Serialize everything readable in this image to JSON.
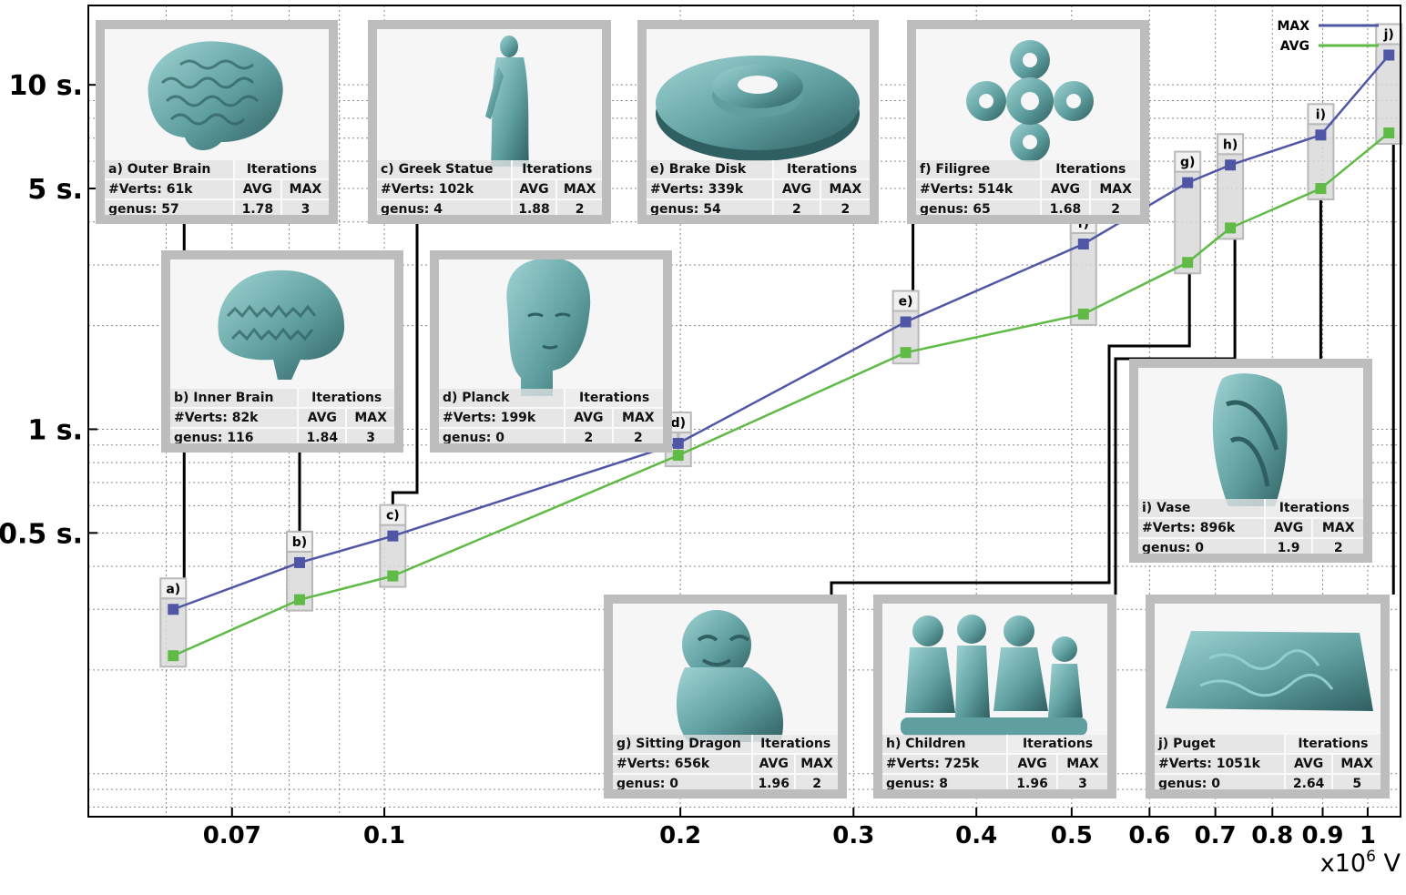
{
  "chart_data": {
    "type": "line",
    "x_scale": "log",
    "y_scale": "log",
    "x_unit": "x10",
    "x_unit_exp": "6",
    "x_unit_tail": " V",
    "xlim": [
      0.05,
      1.08
    ],
    "ylim": [
      0.075,
      17
    ],
    "grid": true,
    "legend_position": "top-right",
    "x_ticks": [
      {
        "v": 0.07,
        "label": "0.07"
      },
      {
        "v": 0.1,
        "label": "0.1"
      },
      {
        "v": 0.2,
        "label": "0.2"
      },
      {
        "v": 0.3,
        "label": "0.3"
      },
      {
        "v": 0.4,
        "label": "0.4"
      },
      {
        "v": 0.5,
        "label": "0.5"
      },
      {
        "v": 0.6,
        "label": "0.6"
      },
      {
        "v": 0.7,
        "label": "0.7"
      },
      {
        "v": 0.8,
        "label": "0.8"
      },
      {
        "v": 0.9,
        "label": "0.9"
      },
      {
        "v": 1.0,
        "label": "1"
      }
    ],
    "y_ticks": [
      {
        "v": 0.5,
        "label": "0.5 s."
      },
      {
        "v": 1,
        "label": "1 s."
      },
      {
        "v": 5,
        "label": "5 s."
      },
      {
        "v": 10,
        "label": "10 s."
      }
    ],
    "point_labels": [
      "a)",
      "b)",
      "c)",
      "d)",
      "e)",
      "f)",
      "g)",
      "h)",
      "i)",
      "j)"
    ],
    "x": [
      0.061,
      0.082,
      0.102,
      0.199,
      0.339,
      0.514,
      0.656,
      0.725,
      0.896,
      1.051
    ],
    "series": [
      {
        "name": "MAX",
        "color": "#4f56a6",
        "values": [
          0.3,
          0.41,
          0.49,
          0.91,
          2.05,
          3.45,
          5.2,
          5.85,
          7.15,
          12.2
        ]
      },
      {
        "name": "AVG",
        "color": "#5fba46",
        "values": [
          0.22,
          0.32,
          0.375,
          0.84,
          1.67,
          2.16,
          3.05,
          3.84,
          5.0,
          7.25
        ]
      }
    ]
  },
  "models": [
    {
      "name": "a) Outer Brain",
      "verts": "#Verts: 61k",
      "genus": "genus: 57",
      "iter": "Iterations",
      "avg_h": "AVG",
      "max_h": "MAX",
      "avg": "1.78",
      "max": "3",
      "icon": "brain-icon"
    },
    {
      "name": "b) Inner Brain",
      "verts": "#Verts: 82k",
      "genus": "genus: 116",
      "iter": "Iterations",
      "avg_h": "AVG",
      "max_h": "MAX",
      "avg": "1.84",
      "max": "3",
      "icon": "coral-brain-icon"
    },
    {
      "name": "c) Greek Statue",
      "verts": "#Verts: 102k",
      "genus": "genus: 4",
      "iter": "Iterations",
      "avg_h": "AVG",
      "max_h": "MAX",
      "avg": "1.88",
      "max": "2",
      "icon": "statue-icon"
    },
    {
      "name": "d) Planck",
      "verts": "#Verts: 199k",
      "genus": "genus: 0",
      "iter": "Iterations",
      "avg_h": "AVG",
      "max_h": "MAX",
      "avg": "2",
      "max": "2",
      "icon": "head-bust-icon"
    },
    {
      "name": "e) Brake Disk",
      "verts": "#Verts: 339k",
      "genus": "genus: 54",
      "iter": "Iterations",
      "avg_h": "AVG",
      "max_h": "MAX",
      "avg": "2",
      "max": "2",
      "icon": "brake-disk-icon"
    },
    {
      "name": "f) Filigree",
      "verts": "#Verts: 514k",
      "genus": "genus: 65",
      "iter": "Iterations",
      "avg_h": "AVG",
      "max_h": "MAX",
      "avg": "1.68",
      "max": "2",
      "icon": "filigree-icon"
    },
    {
      "name": "g) Sitting Dragon",
      "verts": "#Verts: 656k",
      "genus": "genus: 0",
      "iter": "Iterations",
      "avg_h": "AVG",
      "max_h": "MAX",
      "avg": "1.96",
      "max": "2",
      "icon": "dragon-icon"
    },
    {
      "name": "h) Children",
      "verts": "#Verts: 725k",
      "genus": "genus: 8",
      "iter": "Iterations",
      "avg_h": "AVG",
      "max_h": "MAX",
      "avg": "1.96",
      "max": "3",
      "icon": "children-icon"
    },
    {
      "name": "i) Vase",
      "verts": "#Verts: 896k",
      "genus": "genus: 0",
      "iter": "Iterations",
      "avg_h": "AVG",
      "max_h": "MAX",
      "avg": "1.9",
      "max": "2",
      "icon": "vase-icon"
    },
    {
      "name": "j) Puget",
      "verts": "#Verts: 1051k",
      "genus": "genus: 0",
      "iter": "Iterations",
      "avg_h": "AVG",
      "max_h": "MAX",
      "avg": "2.64",
      "max": "5",
      "icon": "terrain-icon"
    }
  ]
}
